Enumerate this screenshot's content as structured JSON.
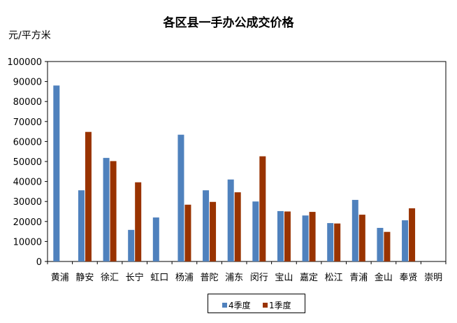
{
  "chart_data": {
    "type": "bar",
    "title": "各区县一手办公成交价格",
    "ylabel": "元/平方米",
    "xlabel": "",
    "ylim": [
      0,
      100000
    ],
    "yticks": [
      0,
      10000,
      20000,
      30000,
      40000,
      50000,
      60000,
      70000,
      80000,
      90000,
      100000
    ],
    "categories": [
      "黄浦",
      "静安",
      "徐汇",
      "长宁",
      "虹口",
      "杨浦",
      "普陀",
      "浦东",
      "闵行",
      "宝山",
      "嘉定",
      "松江",
      "青浦",
      "金山",
      "奉贤",
      "崇明"
    ],
    "series": [
      {
        "name": "4季度",
        "color": "#4F81BD",
        "values": [
          88000,
          35600,
          51800,
          15800,
          22000,
          63400,
          35600,
          41000,
          30000,
          25200,
          23000,
          19200,
          30800,
          16800,
          20600,
          null
        ]
      },
      {
        "name": "1季度",
        "color": "#993300",
        "values": [
          null,
          64800,
          50200,
          39600,
          null,
          28400,
          29800,
          34600,
          52600,
          25000,
          24800,
          19000,
          23400,
          14800,
          26600,
          null
        ]
      }
    ],
    "grid": false,
    "legend": "bottom"
  }
}
